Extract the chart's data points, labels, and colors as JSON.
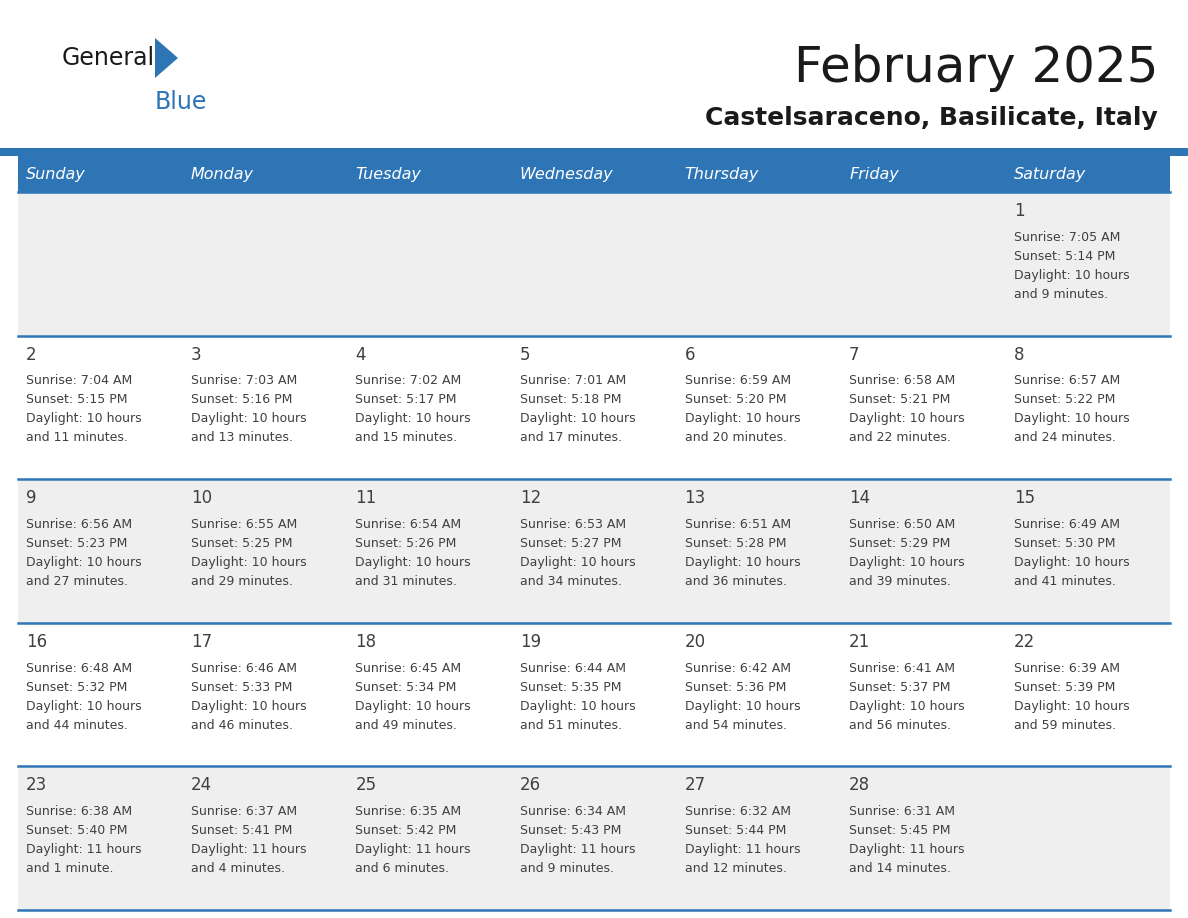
{
  "title": "February 2025",
  "subtitle": "Castelsaraceno, Basilicate, Italy",
  "header_bg_color": "#2E75B6",
  "header_text_color": "#FFFFFF",
  "header_days": [
    "Sunday",
    "Monday",
    "Tuesday",
    "Wednesday",
    "Thursday",
    "Friday",
    "Saturday"
  ],
  "row_bg_even": "#EFEFEF",
  "row_bg_odd": "#FFFFFF",
  "cell_border_color": "#2E75B6",
  "day_number_color": "#404040",
  "text_color": "#404040",
  "logo_general_color": "#1A1A1A",
  "logo_blue_color": "#2E75B6",
  "background_color": "#FFFFFF",
  "title_fontsize": 36,
  "subtitle_fontsize": 18,
  "header_fontsize": 11.5,
  "day_num_fontsize": 12,
  "info_fontsize": 9,
  "calendar_data": [
    [
      {
        "day": null,
        "info": ""
      },
      {
        "day": null,
        "info": ""
      },
      {
        "day": null,
        "info": ""
      },
      {
        "day": null,
        "info": ""
      },
      {
        "day": null,
        "info": ""
      },
      {
        "day": null,
        "info": ""
      },
      {
        "day": 1,
        "info": "Sunrise: 7:05 AM\nSunset: 5:14 PM\nDaylight: 10 hours\nand 9 minutes."
      }
    ],
    [
      {
        "day": 2,
        "info": "Sunrise: 7:04 AM\nSunset: 5:15 PM\nDaylight: 10 hours\nand 11 minutes."
      },
      {
        "day": 3,
        "info": "Sunrise: 7:03 AM\nSunset: 5:16 PM\nDaylight: 10 hours\nand 13 minutes."
      },
      {
        "day": 4,
        "info": "Sunrise: 7:02 AM\nSunset: 5:17 PM\nDaylight: 10 hours\nand 15 minutes."
      },
      {
        "day": 5,
        "info": "Sunrise: 7:01 AM\nSunset: 5:18 PM\nDaylight: 10 hours\nand 17 minutes."
      },
      {
        "day": 6,
        "info": "Sunrise: 6:59 AM\nSunset: 5:20 PM\nDaylight: 10 hours\nand 20 minutes."
      },
      {
        "day": 7,
        "info": "Sunrise: 6:58 AM\nSunset: 5:21 PM\nDaylight: 10 hours\nand 22 minutes."
      },
      {
        "day": 8,
        "info": "Sunrise: 6:57 AM\nSunset: 5:22 PM\nDaylight: 10 hours\nand 24 minutes."
      }
    ],
    [
      {
        "day": 9,
        "info": "Sunrise: 6:56 AM\nSunset: 5:23 PM\nDaylight: 10 hours\nand 27 minutes."
      },
      {
        "day": 10,
        "info": "Sunrise: 6:55 AM\nSunset: 5:25 PM\nDaylight: 10 hours\nand 29 minutes."
      },
      {
        "day": 11,
        "info": "Sunrise: 6:54 AM\nSunset: 5:26 PM\nDaylight: 10 hours\nand 31 minutes."
      },
      {
        "day": 12,
        "info": "Sunrise: 6:53 AM\nSunset: 5:27 PM\nDaylight: 10 hours\nand 34 minutes."
      },
      {
        "day": 13,
        "info": "Sunrise: 6:51 AM\nSunset: 5:28 PM\nDaylight: 10 hours\nand 36 minutes."
      },
      {
        "day": 14,
        "info": "Sunrise: 6:50 AM\nSunset: 5:29 PM\nDaylight: 10 hours\nand 39 minutes."
      },
      {
        "day": 15,
        "info": "Sunrise: 6:49 AM\nSunset: 5:30 PM\nDaylight: 10 hours\nand 41 minutes."
      }
    ],
    [
      {
        "day": 16,
        "info": "Sunrise: 6:48 AM\nSunset: 5:32 PM\nDaylight: 10 hours\nand 44 minutes."
      },
      {
        "day": 17,
        "info": "Sunrise: 6:46 AM\nSunset: 5:33 PM\nDaylight: 10 hours\nand 46 minutes."
      },
      {
        "day": 18,
        "info": "Sunrise: 6:45 AM\nSunset: 5:34 PM\nDaylight: 10 hours\nand 49 minutes."
      },
      {
        "day": 19,
        "info": "Sunrise: 6:44 AM\nSunset: 5:35 PM\nDaylight: 10 hours\nand 51 minutes."
      },
      {
        "day": 20,
        "info": "Sunrise: 6:42 AM\nSunset: 5:36 PM\nDaylight: 10 hours\nand 54 minutes."
      },
      {
        "day": 21,
        "info": "Sunrise: 6:41 AM\nSunset: 5:37 PM\nDaylight: 10 hours\nand 56 minutes."
      },
      {
        "day": 22,
        "info": "Sunrise: 6:39 AM\nSunset: 5:39 PM\nDaylight: 10 hours\nand 59 minutes."
      }
    ],
    [
      {
        "day": 23,
        "info": "Sunrise: 6:38 AM\nSunset: 5:40 PM\nDaylight: 11 hours\nand 1 minute."
      },
      {
        "day": 24,
        "info": "Sunrise: 6:37 AM\nSunset: 5:41 PM\nDaylight: 11 hours\nand 4 minutes."
      },
      {
        "day": 25,
        "info": "Sunrise: 6:35 AM\nSunset: 5:42 PM\nDaylight: 11 hours\nand 6 minutes."
      },
      {
        "day": 26,
        "info": "Sunrise: 6:34 AM\nSunset: 5:43 PM\nDaylight: 11 hours\nand 9 minutes."
      },
      {
        "day": 27,
        "info": "Sunrise: 6:32 AM\nSunset: 5:44 PM\nDaylight: 11 hours\nand 12 minutes."
      },
      {
        "day": 28,
        "info": "Sunrise: 6:31 AM\nSunset: 5:45 PM\nDaylight: 11 hours\nand 14 minutes."
      },
      {
        "day": null,
        "info": ""
      }
    ]
  ]
}
